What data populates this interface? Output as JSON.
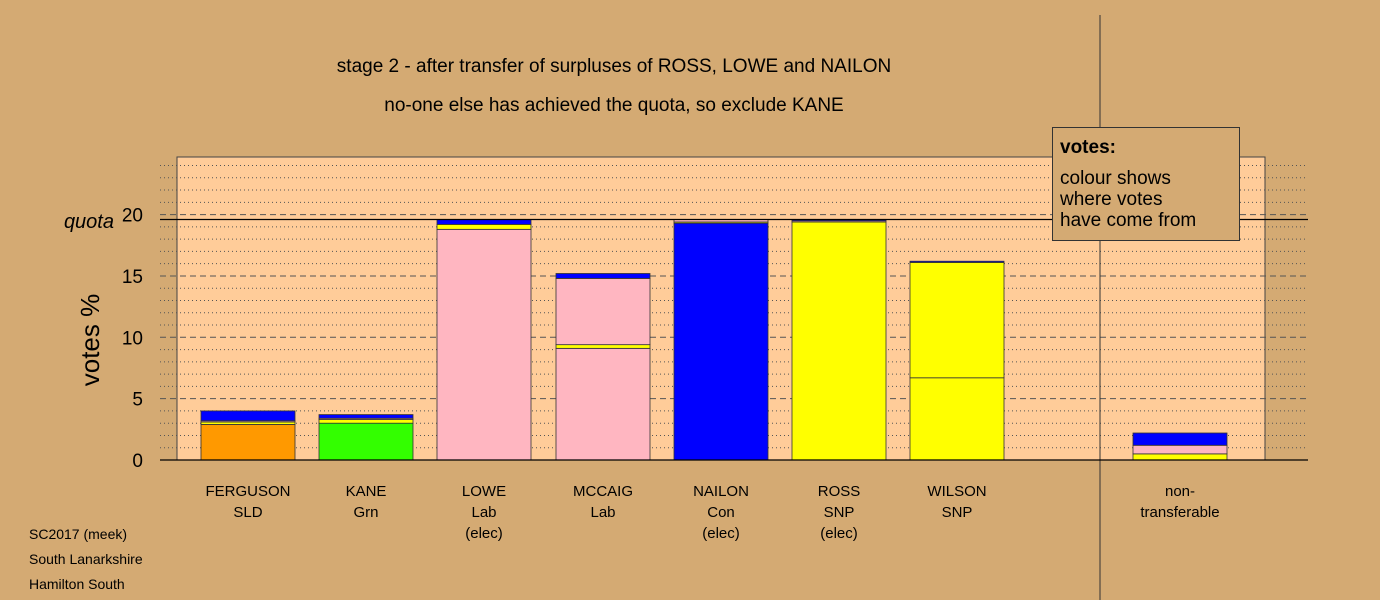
{
  "chart_data": {
    "type": "bar",
    "stacked": true,
    "title_lines": [
      "stage 2 - after transfer of surpluses of ROSS, LOWE and NAILON",
      "no-one else has achieved the quota, so exclude KANE"
    ],
    "ylabel": "votes %",
    "ylim": [
      0,
      24.7
    ],
    "yticks": [
      0,
      5,
      10,
      15,
      20
    ],
    "quota": {
      "label": "quota",
      "value": 19.6
    },
    "candidates": [
      {
        "name": "FERGUSON",
        "party": "SLD",
        "status": "",
        "segments": [
          {
            "color": "#ff9900",
            "value": 2.9
          },
          {
            "color": "#ffff00",
            "value": 0.2
          },
          {
            "color": "#ffb6c1",
            "value": 0.1
          },
          {
            "color": "#0000ff",
            "value": 0.8
          }
        ]
      },
      {
        "name": "KANE",
        "party": "Grn",
        "status": "",
        "segments": [
          {
            "color": "#33ff00",
            "value": 3.0
          },
          {
            "color": "#ffff00",
            "value": 0.3
          },
          {
            "color": "#ffb6c1",
            "value": 0.1
          },
          {
            "color": "#0000ff",
            "value": 0.3
          }
        ]
      },
      {
        "name": "LOWE",
        "party": "Lab",
        "status": "(elec)",
        "segments": [
          {
            "color": "#ffb6c1",
            "value": 18.8
          },
          {
            "color": "#ffff00",
            "value": 0.4
          },
          {
            "color": "#0000ff",
            "value": 0.4
          }
        ]
      },
      {
        "name": "MCCAIG",
        "party": "Lab",
        "status": "",
        "segments": [
          {
            "color": "#ffb6c1",
            "value": 9.1
          },
          {
            "color": "#ffff00",
            "value": 0.3
          },
          {
            "color": "#ffb6c1",
            "value": 5.4
          },
          {
            "color": "#0000ff",
            "value": 0.4
          }
        ]
      },
      {
        "name": "NAILON",
        "party": "Con",
        "status": "(elec)",
        "segments": [
          {
            "color": "#0000ff",
            "value": 19.3
          },
          {
            "color": "#ffff00",
            "value": 0.1
          },
          {
            "color": "#ffb6c1",
            "value": 0.2
          }
        ]
      },
      {
        "name": "ROSS",
        "party": "SNP",
        "status": "(elec)",
        "segments": [
          {
            "color": "#ffff00",
            "value": 19.4
          },
          {
            "color": "#ffb6c1",
            "value": 0.1
          },
          {
            "color": "#0000ff",
            "value": 0.1
          }
        ]
      },
      {
        "name": "WILSON",
        "party": "SNP",
        "status": "",
        "segments": [
          {
            "color": "#ffff00",
            "value": 6.7
          },
          {
            "color": "#ffff00",
            "value": 9.4
          },
          {
            "color": "#0000ff",
            "value": 0.1
          }
        ]
      },
      {
        "name": "non-",
        "party": "transferable",
        "status": "",
        "segments": [
          {
            "color": "#ffff00",
            "value": 0.5
          },
          {
            "color": "#ffb6c1",
            "value": 0.7
          },
          {
            "color": "#0000ff",
            "value": 1.0
          }
        ]
      }
    ],
    "colors": {
      "background": "#d4aa73",
      "plot_background": "#ffcc99"
    }
  },
  "legend": {
    "title": "votes:",
    "lines": [
      "colour shows",
      "where votes",
      "have come from"
    ]
  },
  "footer": {
    "line1": "SC2017 (meek)",
    "line2": "South Lanarkshire",
    "line3": "Hamilton South"
  }
}
